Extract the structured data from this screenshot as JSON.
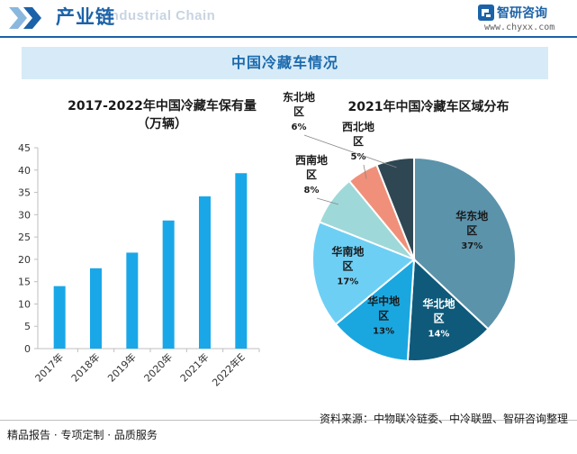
{
  "header": {
    "title": "产业链",
    "subtitle_watermark": "Industrial Chain",
    "brand_name": "智研咨询",
    "brand_url": "www.chyxx.com"
  },
  "main_title": "中国冷藏车情况",
  "footer": {
    "left": "精品报告 · 专项定制 · 品质服务",
    "source": "资料来源：中物联冷链委、中冷联盟、智研咨询整理"
  },
  "colors": {
    "brand": "#1c62a8",
    "bar": "#1aa7e8",
    "banner_bg": "#d6ebf7"
  },
  "chart_data": [
    {
      "type": "bar",
      "title": "2017-2022年中国冷藏车保有量",
      "subtitle": "（万辆）",
      "categories": [
        "2017年",
        "2018年",
        "2019年",
        "2020年",
        "2021年",
        "2022年E"
      ],
      "values": [
        14.0,
        18.0,
        21.5,
        28.7,
        34.1,
        39.3
      ],
      "ylim": [
        0,
        45
      ],
      "yticks": [
        0,
        5,
        10,
        15,
        20,
        25,
        30,
        35,
        40,
        45
      ],
      "grid": false
    },
    {
      "type": "pie",
      "title": "2021年中国冷藏车区域分布",
      "slices": [
        {
          "label": "华东地区",
          "value": 37,
          "display": "37%",
          "color": "#5b93ab"
        },
        {
          "label": "华北地区",
          "value": 14,
          "display": "14%",
          "color": "#0f5a7a"
        },
        {
          "label": "华中地区",
          "value": 13,
          "display": "13%",
          "color": "#1aa7e0"
        },
        {
          "label": "华南地区",
          "value": 17,
          "display": "17%",
          "color": "#6ecff5"
        },
        {
          "label": "西南地区",
          "value": 8,
          "display": "8%",
          "color": "#9fd8d8"
        },
        {
          "label": "西北地区",
          "value": 5,
          "display": "5%",
          "color": "#f0907a"
        },
        {
          "label": "东北地区",
          "value": 6,
          "display": "6%",
          "color": "#2e4753"
        }
      ]
    }
  ]
}
